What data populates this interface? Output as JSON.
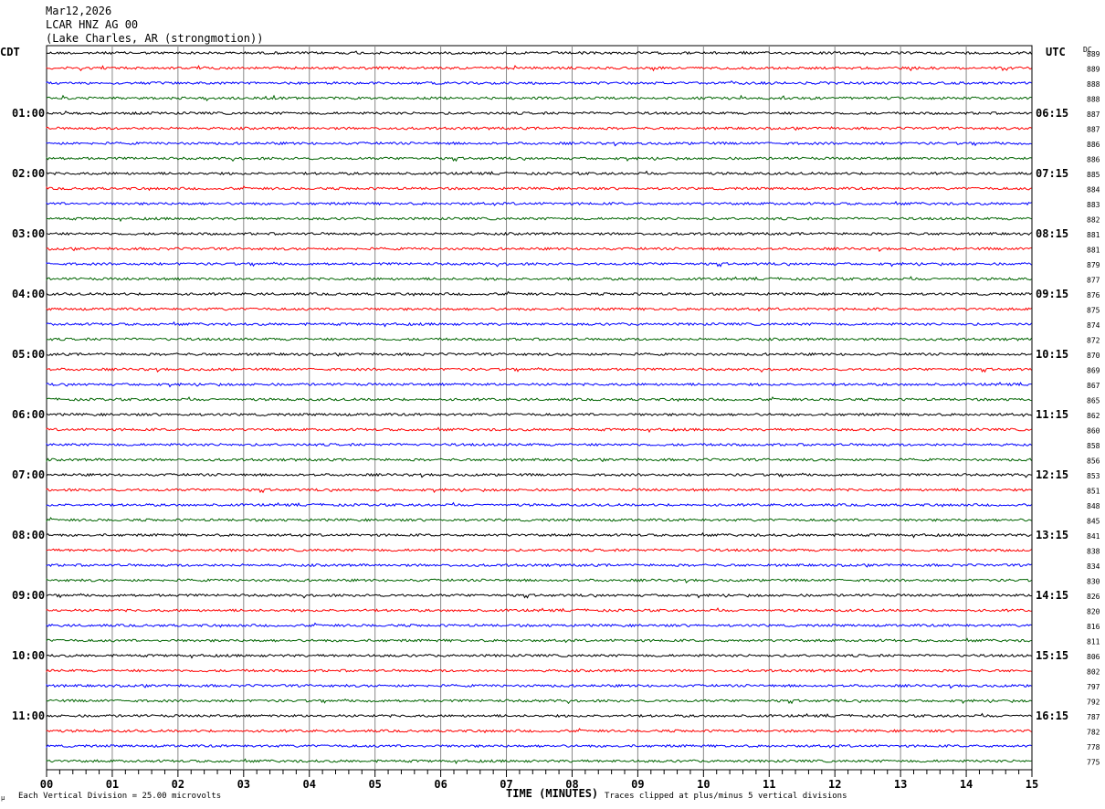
{
  "header": {
    "date": "Mar12,2026",
    "station": "LCAR HNZ AG 00",
    "location": "(Lake Charles, AR (strongmotion))"
  },
  "chart_data": {
    "type": "line",
    "title": "LCAR HNZ AG 00",
    "xlabel": "TIME (MINUTES)",
    "left_label": "CDT",
    "right_label": "UTC",
    "dc_label": "DC",
    "xlim": [
      0,
      15
    ],
    "x_ticks": [
      "00",
      "01",
      "02",
      "03",
      "04",
      "05",
      "06",
      "07",
      "08",
      "09",
      "10",
      "11",
      "12",
      "13",
      "14",
      "15"
    ],
    "left_hours": [
      "01:00",
      "02:00",
      "03:00",
      "04:00",
      "05:00",
      "06:00",
      "07:00",
      "08:00",
      "09:00",
      "10:00",
      "11:00"
    ],
    "right_hours": [
      "06:15",
      "07:15",
      "08:15",
      "09:15",
      "10:15",
      "11:15",
      "12:15",
      "13:15",
      "14:15",
      "15:15",
      "16:15"
    ],
    "trace_colors": [
      "#000000",
      "#ff0000",
      "#0000ff",
      "#006400"
    ],
    "dc_values": [
      889,
      889,
      888,
      888,
      887,
      887,
      886,
      886,
      885,
      884,
      883,
      882,
      881,
      881,
      879,
      877,
      876,
      875,
      874,
      872,
      870,
      869,
      867,
      865,
      862,
      860,
      858,
      856,
      853,
      851,
      848,
      845,
      841,
      838,
      834,
      830,
      826,
      820,
      816,
      811,
      806,
      802,
      797,
      792,
      787,
      782,
      778,
      775
    ],
    "scale_note": "Each Vertical Division =   25.00 microvolts",
    "clip_note": "Traces clipped at plus/minus 5 vertical divisions",
    "corner_mark": "μ"
  }
}
